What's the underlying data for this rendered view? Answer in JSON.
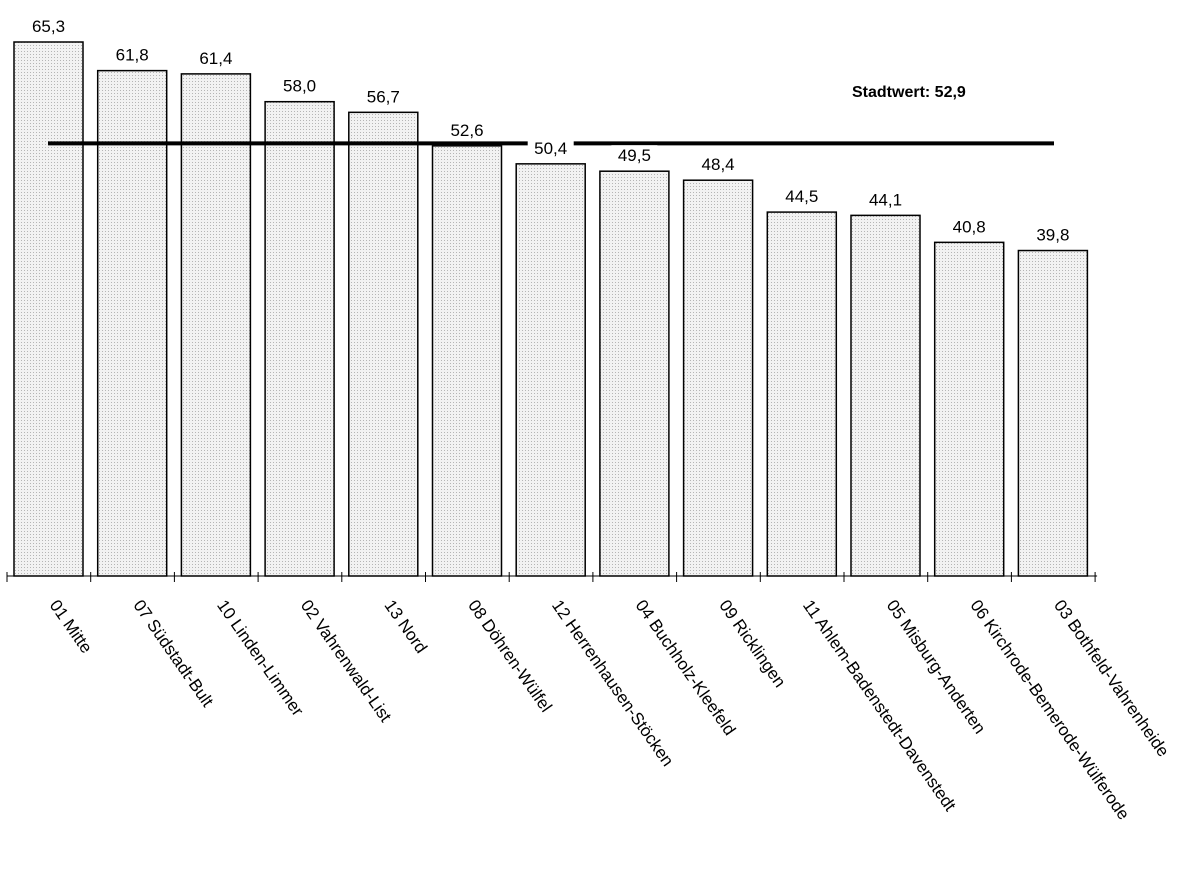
{
  "chart_data": {
    "type": "bar",
    "categories": [
      "01 Mitte",
      "07 Südstadt-Bult",
      "10 Linden-Limmer",
      "02 Vahrenwald-List",
      "13 Nord",
      "08 Döhren-Wülfel",
      "12 Herrenhausen-Stöcken",
      "04 Buchholz-Kleefeld",
      "09 Ricklingen",
      "11 Ahlem-Badenstedt-Davenstedt",
      "05 Misburg-Anderten",
      "06 Kirchrode-Bemerode-Wülferode",
      "03 Bothfeld-Vahrenheide"
    ],
    "values": [
      65.3,
      61.8,
      61.4,
      58.0,
      56.7,
      52.6,
      50.4,
      49.5,
      48.4,
      44.5,
      44.1,
      40.8,
      39.8
    ],
    "value_labels": [
      "65,3",
      "61,8",
      "61,4",
      "58,0",
      "56,7",
      "52,6",
      "50,4",
      "49,5",
      "48,4",
      "44,5",
      "44,1",
      "40,8",
      "39,8"
    ],
    "reference_line": {
      "value": 52.9,
      "label": "Stadtwert: 52,9"
    },
    "ylim": [
      0,
      65.3
    ],
    "bar_fill": "#e6e6e6",
    "bar_stroke": "#000000",
    "line_color": "#000000"
  }
}
